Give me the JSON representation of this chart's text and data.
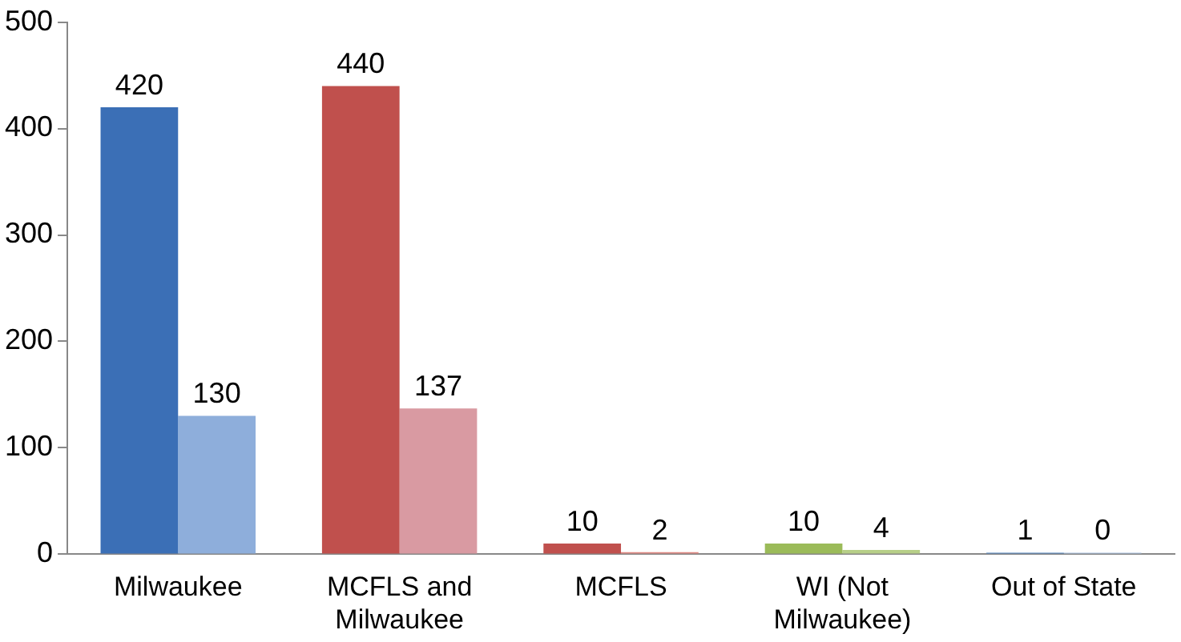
{
  "chart_data": {
    "type": "bar",
    "categories": [
      "Milwaukee",
      "MCFLS and Milwaukee",
      "MCFLS",
      "WI (Not Milwaukee)",
      "Out of State"
    ],
    "series": [
      {
        "colors": [
          "#3b6fb6",
          "#c0504d",
          "#c0504d",
          "#9bbb59",
          "#4f81bd"
        ],
        "values": [
          420,
          440,
          10,
          10,
          1
        ]
      },
      {
        "colors": [
          "#8eaedb",
          "#d99aa2",
          "#e08a84",
          "#b7cf88",
          "#a7bfe0"
        ],
        "values": [
          130,
          137,
          2,
          4,
          0
        ]
      }
    ],
    "ylim": [
      0,
      500
    ],
    "yticks": [
      0,
      100,
      200,
      300,
      400,
      500
    ],
    "grid": false,
    "legend": false,
    "data_labels": true
  }
}
